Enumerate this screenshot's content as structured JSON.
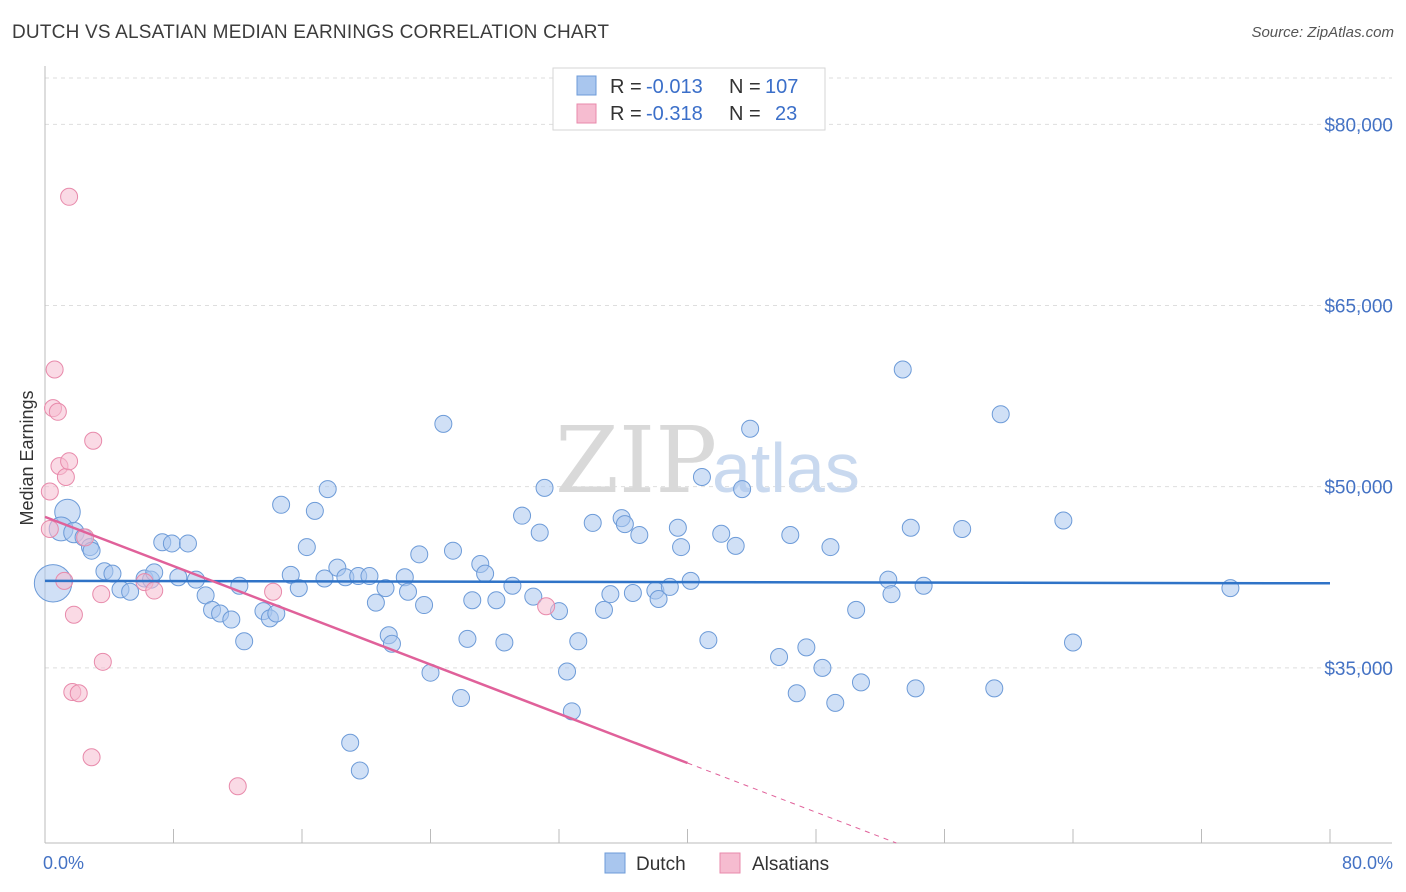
{
  "title": "DUTCH VS ALSATIAN MEDIAN EARNINGS CORRELATION CHART",
  "source": "Source: ZipAtlas.com",
  "watermark": {
    "part1": "ZIP",
    "part2": "atlas"
  },
  "legend": {
    "rows": [
      {
        "r_label": "R = ",
        "r_value": "-0.013",
        "n_label": "N = ",
        "n_value": "107"
      },
      {
        "r_label": "R = ",
        "r_value": "-0.318",
        "n_label": "N = ",
        "n_value": "23"
      }
    ]
  },
  "colors": {
    "dutch_fill": "#a9c6ee",
    "dutch_stroke": "#6d9bd8",
    "dutch_line": "#2f73c7",
    "alsatian_fill": "#f6bcd0",
    "alsatian_stroke": "#e88aab",
    "alsatian_line": "#e0619a"
  },
  "chart_data": {
    "type": "scatter",
    "title": "DUTCH VS ALSATIAN MEDIAN EARNINGS CORRELATION CHART",
    "xlabel": "",
    "ylabel": "Median Earnings",
    "xlim": [
      0,
      80
    ],
    "ylim": [
      20500,
      84000
    ],
    "x_tick_labels": [
      "0.0%",
      "80.0%"
    ],
    "y_ticks": [
      {
        "value": 35000,
        "label": "$35,000"
      },
      {
        "value": 50000,
        "label": "$50,000"
      },
      {
        "value": 65000,
        "label": "$65,000"
      },
      {
        "value": 80000,
        "label": "$80,000"
      }
    ],
    "grid": true,
    "legend_position": "top-center",
    "series": [
      {
        "name": "Dutch",
        "trend": {
          "x0": 0,
          "y0": 42200,
          "x1": 80,
          "y1": 42000,
          "dashed_from": null
        },
        "points": [
          [
            0.5,
            42000,
            2.2
          ],
          [
            1.4,
            47900,
            1.5
          ],
          [
            1.0,
            46500,
            1.4
          ],
          [
            1.8,
            46200,
            1.2
          ],
          [
            2.4,
            45800,
            1.0
          ],
          [
            2.8,
            45000,
            1.0
          ],
          [
            2.9,
            44700,
            1.0
          ],
          [
            3.7,
            43000,
            1.0
          ],
          [
            4.2,
            42800,
            1.0
          ],
          [
            4.7,
            41500,
            1.0
          ],
          [
            5.3,
            41300,
            1.0
          ],
          [
            6.2,
            42400,
            1.0
          ],
          [
            6.6,
            42300,
            1.0
          ],
          [
            6.8,
            42900,
            1.0
          ],
          [
            7.3,
            45400,
            1.0
          ],
          [
            7.9,
            45300,
            1.0
          ],
          [
            8.3,
            42500,
            1.0
          ],
          [
            8.9,
            45300,
            1.0
          ],
          [
            9.4,
            42300,
            1.0
          ],
          [
            10.0,
            41000,
            1.0
          ],
          [
            10.4,
            39800,
            1.0
          ],
          [
            10.9,
            39500,
            1.0
          ],
          [
            11.6,
            39000,
            1.0
          ],
          [
            12.1,
            41800,
            1.0
          ],
          [
            12.4,
            37200,
            1.0
          ],
          [
            13.6,
            39700,
            1.0
          ],
          [
            14.0,
            39100,
            1.0
          ],
          [
            14.4,
            39500,
            1.0
          ],
          [
            14.7,
            48500,
            1.0
          ],
          [
            15.3,
            42700,
            1.0
          ],
          [
            15.8,
            41600,
            1.0
          ],
          [
            16.3,
            45000,
            1.0
          ],
          [
            16.8,
            48000,
            1.0
          ],
          [
            17.4,
            42400,
            1.0
          ],
          [
            17.6,
            49800,
            1.0
          ],
          [
            18.2,
            43300,
            1.0
          ],
          [
            18.7,
            42500,
            1.0
          ],
          [
            19.0,
            28800,
            1.0
          ],
          [
            19.5,
            42600,
            1.0
          ],
          [
            19.6,
            26500,
            1.0
          ],
          [
            20.2,
            42600,
            1.0
          ],
          [
            20.6,
            40400,
            1.0
          ],
          [
            21.2,
            41600,
            1.0
          ],
          [
            21.4,
            37700,
            1.0
          ],
          [
            21.6,
            37000,
            1.0
          ],
          [
            22.4,
            42500,
            1.0
          ],
          [
            22.6,
            41300,
            1.0
          ],
          [
            23.3,
            44400,
            1.0
          ],
          [
            23.6,
            40200,
            1.0
          ],
          [
            24.0,
            34600,
            1.0
          ],
          [
            24.8,
            55200,
            1.0
          ],
          [
            25.4,
            44700,
            1.0
          ],
          [
            25.9,
            32500,
            1.0
          ],
          [
            26.3,
            37400,
            1.0
          ],
          [
            26.6,
            40600,
            1.0
          ],
          [
            27.1,
            43600,
            1.0
          ],
          [
            27.4,
            42800,
            1.0
          ],
          [
            28.1,
            40600,
            1.0
          ],
          [
            28.6,
            37100,
            1.0
          ],
          [
            29.1,
            41800,
            1.0
          ],
          [
            29.7,
            47600,
            1.0
          ],
          [
            30.4,
            40900,
            1.0
          ],
          [
            30.8,
            46200,
            1.0
          ],
          [
            31.1,
            49900,
            1.0
          ],
          [
            32.0,
            39700,
            1.0
          ],
          [
            32.5,
            34700,
            1.0
          ],
          [
            32.8,
            31400,
            1.0
          ],
          [
            33.2,
            37200,
            1.0
          ],
          [
            34.1,
            47000,
            1.0
          ],
          [
            34.8,
            39800,
            1.0
          ],
          [
            35.2,
            41100,
            1.0
          ],
          [
            35.9,
            47400,
            1.0
          ],
          [
            36.1,
            46900,
            1.0
          ],
          [
            36.6,
            41200,
            1.0
          ],
          [
            37.0,
            46000,
            1.0
          ],
          [
            38.0,
            41400,
            1.0
          ],
          [
            38.2,
            40700,
            1.0
          ],
          [
            38.9,
            41700,
            1.0
          ],
          [
            39.4,
            46600,
            1.0
          ],
          [
            39.6,
            45000,
            1.0
          ],
          [
            40.2,
            42200,
            1.0
          ],
          [
            40.9,
            50800,
            1.0
          ],
          [
            41.3,
            37300,
            1.0
          ],
          [
            42.1,
            46100,
            1.0
          ],
          [
            43.0,
            45100,
            1.0
          ],
          [
            43.4,
            49800,
            1.0
          ],
          [
            43.9,
            54800,
            1.0
          ],
          [
            45.7,
            35900,
            1.0
          ],
          [
            46.4,
            46000,
            1.0
          ],
          [
            46.8,
            32900,
            1.0
          ],
          [
            47.4,
            36700,
            1.0
          ],
          [
            48.4,
            35000,
            1.0
          ],
          [
            48.9,
            45000,
            1.0
          ],
          [
            49.2,
            32100,
            1.0
          ],
          [
            50.5,
            39800,
            1.0
          ],
          [
            50.8,
            33800,
            1.0
          ],
          [
            52.5,
            42300,
            1.0
          ],
          [
            52.7,
            41100,
            1.0
          ],
          [
            53.4,
            59700,
            1.0
          ],
          [
            53.9,
            46600,
            1.0
          ],
          [
            54.2,
            33300,
            1.0
          ],
          [
            54.7,
            41800,
            1.0
          ],
          [
            57.1,
            46500,
            1.0
          ],
          [
            59.1,
            33300,
            1.0
          ],
          [
            59.5,
            56000,
            1.0
          ],
          [
            63.4,
            47200,
            1.0
          ],
          [
            64.0,
            37100,
            1.0
          ],
          [
            73.8,
            41600,
            1.0
          ]
        ]
      },
      {
        "name": "Alsatians",
        "trend": {
          "x0": 0,
          "y0": 47500,
          "x1": 53,
          "y1": 20500,
          "dashed_from": 40
        },
        "points": [
          [
            0.3,
            46500,
            1.0
          ],
          [
            0.3,
            49600,
            1.0
          ],
          [
            0.5,
            56500,
            1.0
          ],
          [
            0.6,
            59700,
            1.0
          ],
          [
            0.8,
            56200,
            1.0
          ],
          [
            0.9,
            51700,
            1.0
          ],
          [
            1.2,
            42200,
            1.0
          ],
          [
            1.3,
            50800,
            1.0
          ],
          [
            1.5,
            52100,
            1.0
          ],
          [
            1.5,
            74000,
            1.0
          ],
          [
            1.7,
            33000,
            1.0
          ],
          [
            1.8,
            39400,
            1.0
          ],
          [
            2.1,
            32900,
            1.0
          ],
          [
            2.5,
            45800,
            1.0
          ],
          [
            2.9,
            27600,
            1.0
          ],
          [
            3.0,
            53800,
            1.0
          ],
          [
            3.5,
            41100,
            1.0
          ],
          [
            3.6,
            35500,
            1.0
          ],
          [
            6.2,
            42100,
            1.0
          ],
          [
            6.8,
            41400,
            1.0
          ],
          [
            12.0,
            25200,
            1.0
          ],
          [
            14.2,
            41300,
            1.0
          ],
          [
            31.2,
            40100,
            1.0
          ]
        ]
      }
    ]
  }
}
